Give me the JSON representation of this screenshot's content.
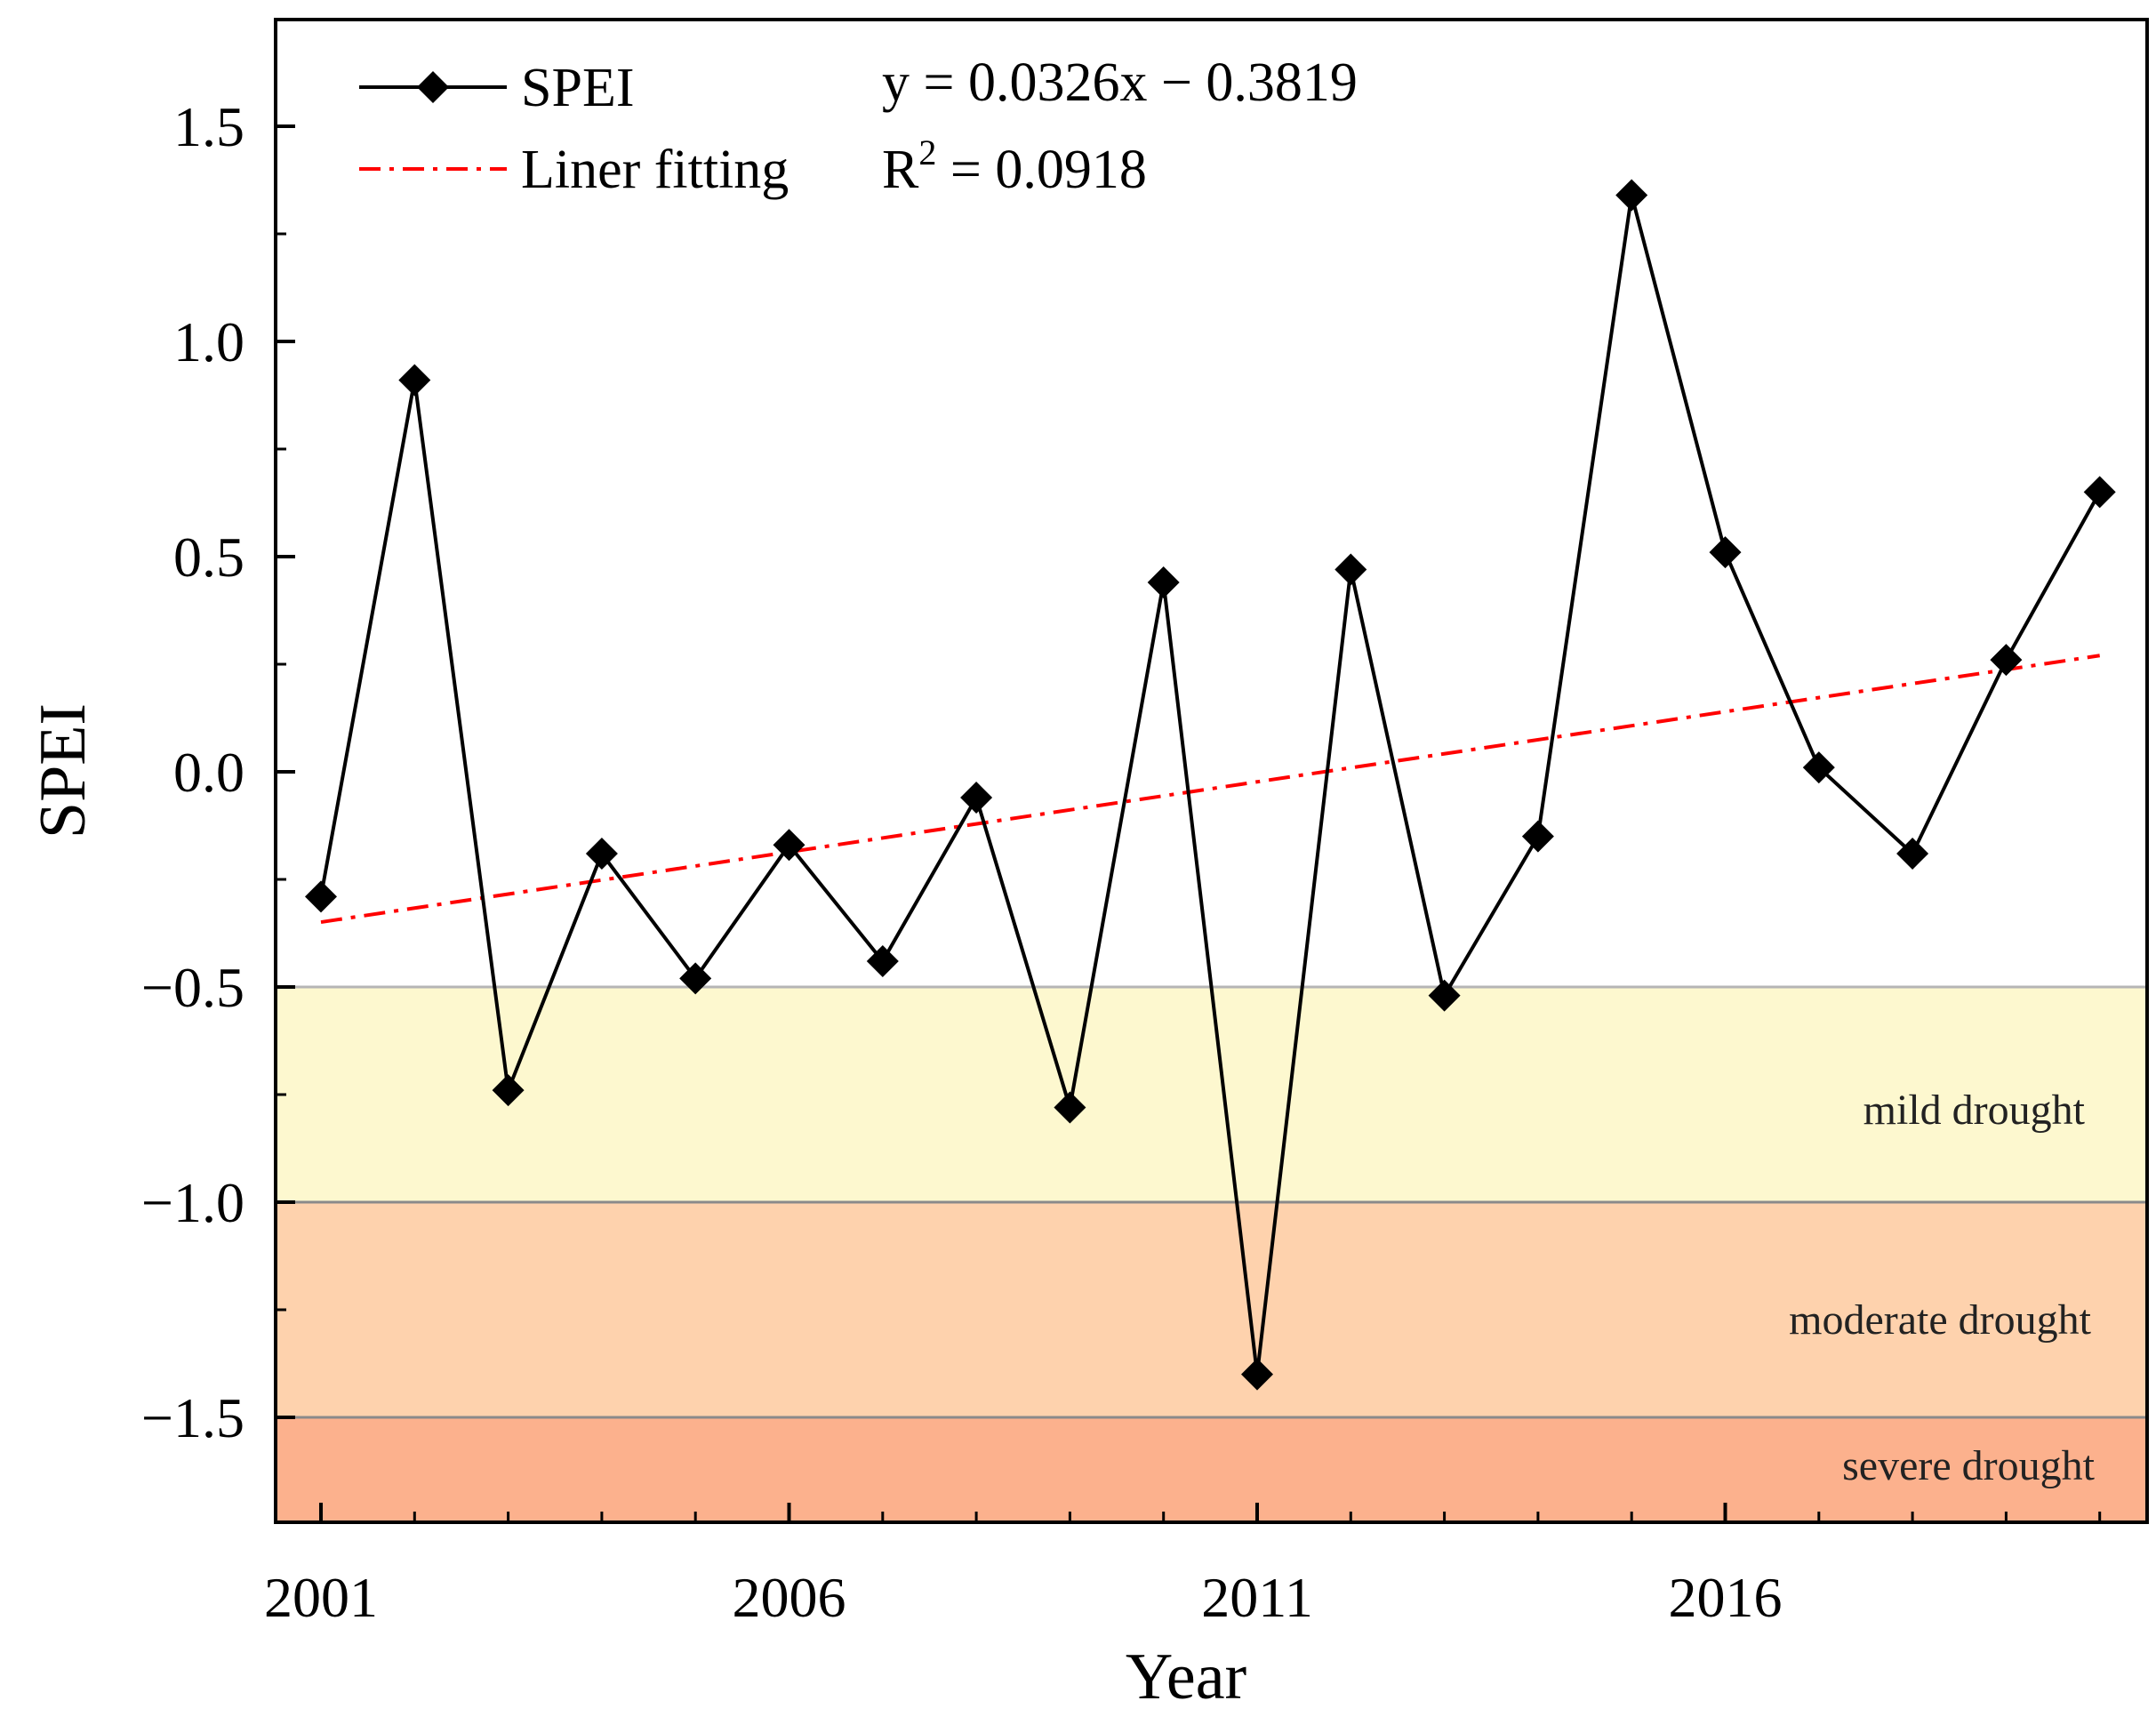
{
  "chart_data": {
    "type": "line",
    "title": "",
    "xlabel": "Year",
    "ylabel": "SPEI",
    "xlim": [
      2000.5,
      2020.5
    ],
    "ylim": [
      -1.75,
      1.75
    ],
    "x_ticks": [
      2001,
      2006,
      2011,
      2016
    ],
    "x_tick_labels": [
      "2001",
      "2006",
      "2011",
      "2016"
    ],
    "x_minor_ticks": [
      2001,
      2002,
      2003,
      2004,
      2005,
      2006,
      2007,
      2008,
      2009,
      2010,
      2011,
      2012,
      2013,
      2014,
      2015,
      2016,
      2017,
      2018,
      2019,
      2020
    ],
    "y_ticks": [
      1.5,
      1.0,
      0.5,
      0.0,
      -0.5,
      -1.0,
      -1.5
    ],
    "y_tick_labels": [
      "1.5",
      "1.0",
      "0.5",
      "0.0",
      "−0.5",
      "−1.0",
      "−1.5"
    ],
    "y_minor_ticks": [
      1.25,
      0.75,
      0.25,
      -0.25,
      -0.75,
      -1.25
    ],
    "series": [
      {
        "name": "SPEI",
        "x": [
          2001,
          2002,
          2003,
          2004,
          2005,
          2006,
          2007,
          2008,
          2009,
          2010,
          2011,
          2012,
          2013,
          2014,
          2015,
          2016,
          2017,
          2018,
          2019,
          2020
        ],
        "values": [
          -0.29,
          0.91,
          -0.74,
          -0.19,
          -0.48,
          -0.17,
          -0.44,
          -0.06,
          -0.78,
          0.44,
          -1.4,
          0.47,
          -0.52,
          -0.15,
          1.34,
          0.51,
          0.01,
          -0.19,
          0.26,
          0.65
        ],
        "color": "#000000",
        "marker": "diamond"
      },
      {
        "name": "Liner fitting",
        "x": [
          2001,
          2020
        ],
        "values": [
          -0.3493,
          0.2701
        ],
        "color": "#ff0000",
        "style": "dash-dot"
      }
    ],
    "bands": [
      {
        "label": "mild drought",
        "from": -0.5,
        "to": -1.0,
        "color": "#fdf8cf"
      },
      {
        "label": "moderate drought",
        "from": -1.0,
        "to": -1.5,
        "color": "#fed2ad"
      },
      {
        "label": "severe drought",
        "from": -1.5,
        "to": -1.75,
        "color": "#fcb18d"
      }
    ],
    "legend": {
      "placement": "top-left",
      "entries": [
        "SPEI",
        "Liner fitting"
      ],
      "equation": "y = 0.0326x − 0.3819",
      "r2_prefix": "R",
      "r2_sup": "2",
      "r2_value": " = 0.0918"
    }
  }
}
